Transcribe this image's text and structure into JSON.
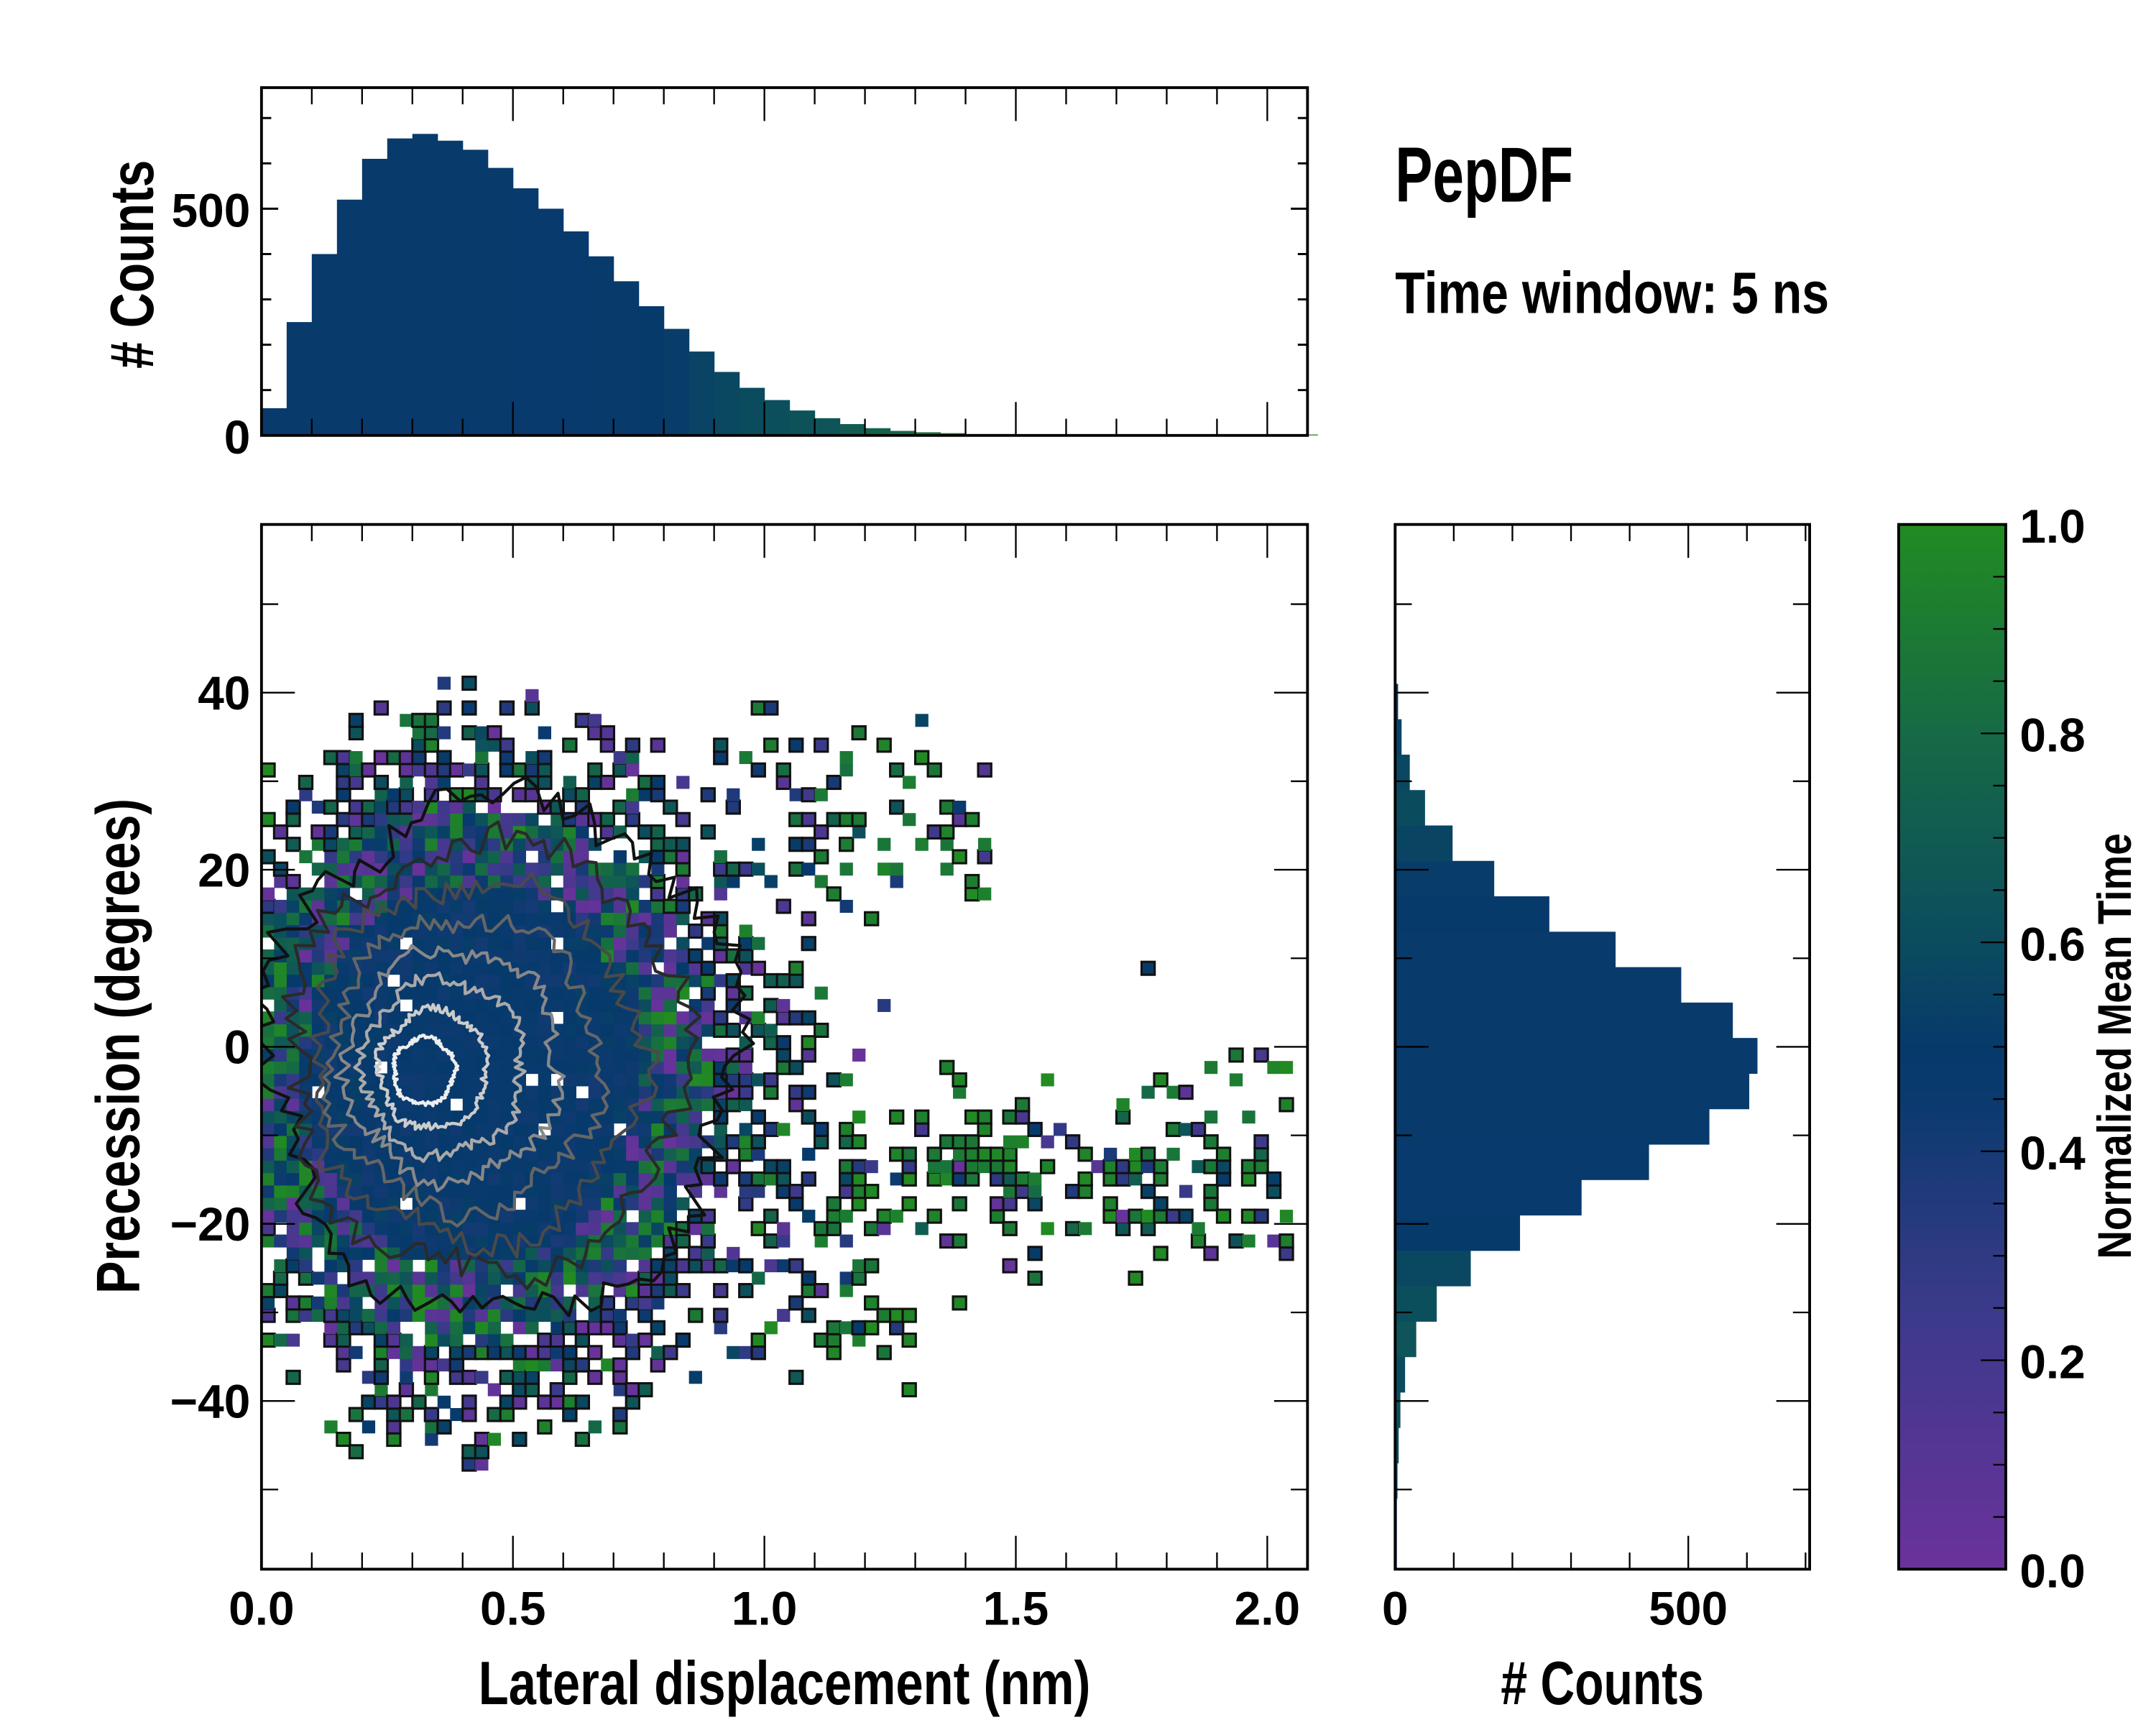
{
  "figure": {
    "title": "PepDF",
    "subtitle": "Time window: 5 ns"
  },
  "chart_data": [
    {
      "id": "top_histogram",
      "type": "bar",
      "title": "",
      "xlabel": "",
      "ylabel": "# Counts",
      "xlim": [
        0,
        2.08
      ],
      "ylim": [
        0,
        767
      ],
      "bin_width": 0.05,
      "bin_start": 0.0,
      "values": [
        60,
        250,
        400,
        520,
        610,
        655,
        665,
        650,
        630,
        590,
        545,
        500,
        450,
        395,
        340,
        285,
        235,
        185,
        140,
        105,
        78,
        55,
        38,
        25,
        16,
        10,
        7,
        5,
        3,
        3,
        2,
        2,
        1,
        2,
        1,
        2,
        1,
        1,
        2,
        1,
        1,
        2
      ],
      "color_values": [
        0.48,
        0.48,
        0.48,
        0.48,
        0.48,
        0.48,
        0.48,
        0.48,
        0.48,
        0.48,
        0.47,
        0.47,
        0.47,
        0.48,
        0.48,
        0.5,
        0.52,
        0.55,
        0.58,
        0.6,
        0.62,
        0.64,
        0.66,
        0.7,
        0.74,
        0.78,
        0.85,
        0.9,
        0.9,
        0.95,
        0.95,
        0.95,
        0.95,
        0.95,
        0.95,
        0.95,
        0.95,
        0.95,
        0.95,
        0.95,
        0.95,
        0.95
      ],
      "yticks": [
        0,
        500
      ],
      "grid": false
    },
    {
      "id": "main_heatmap",
      "type": "heatmap",
      "xlabel": "Lateral displacement (nm)",
      "ylabel": "Precession (degrees)",
      "xlim": [
        0,
        2.08
      ],
      "ylim": [
        -59,
        59
      ],
      "xticks": [
        "0.0",
        "0.5",
        "1.0",
        "1.5",
        "2.0"
      ],
      "yticks": [
        "−40",
        "−20",
        "0",
        "20",
        "40"
      ],
      "ytick_values": [
        -40,
        -20,
        0,
        20,
        40
      ],
      "cell_size": [
        0.025,
        1.4
      ],
      "density_model": {
        "center": [
          0.42,
          -3
        ],
        "spread": [
          0.42,
          27
        ],
        "streak_angle_center": -14,
        "seed": 7
      },
      "contour_levels": [
        1.0,
        0.84,
        0.7,
        0.57,
        0.45,
        0.34,
        0.23,
        0.13
      ],
      "contour_colors": [
        "#111111",
        "#2a2a2a",
        "#4a4a4a",
        "#666666",
        "#888888",
        "#a9a9a9",
        "#cccccc",
        "#eeeeee"
      ],
      "grid": false
    },
    {
      "id": "right_histogram",
      "type": "bar",
      "orientation": "horizontal",
      "xlabel": "# Counts",
      "ylabel": "",
      "xlim": [
        0,
        707
      ],
      "ylim": [
        -59,
        59
      ],
      "bin_width": 4,
      "bin_centers": [
        -57,
        -53,
        -49,
        -45,
        -41,
        -37,
        -33,
        -29,
        -25,
        -21,
        -17,
        -13,
        -9,
        -5,
        -1,
        3,
        7,
        11,
        15,
        19,
        23,
        27,
        31,
        35,
        39,
        43,
        47
      ],
      "values": [
        3,
        3,
        4,
        6,
        9,
        17,
        36,
        71,
        129,
        213,
        318,
        433,
        536,
        604,
        618,
        576,
        488,
        376,
        263,
        169,
        98,
        51,
        25,
        11,
        5,
        2,
        1
      ],
      "color_values": [
        0.35,
        0.4,
        0.55,
        0.6,
        0.62,
        0.6,
        0.65,
        0.62,
        0.58,
        0.5,
        0.47,
        0.47,
        0.48,
        0.48,
        0.48,
        0.48,
        0.48,
        0.48,
        0.5,
        0.52,
        0.56,
        0.6,
        0.58,
        0.55,
        0.5,
        0.5,
        0.5
      ],
      "xticks": [
        "0",
        "500"
      ],
      "xtick_values": [
        0,
        500
      ],
      "grid": false
    },
    {
      "id": "colorbar",
      "type": "colorbar",
      "label": "Normalized Mean Time",
      "range": [
        0,
        1
      ],
      "ticks": [
        "0.0",
        "0.2",
        "0.4",
        "0.6",
        "0.8",
        "1.0"
      ],
      "tick_values": [
        0,
        0.2,
        0.4,
        0.6,
        0.8,
        1.0
      ],
      "colors": [
        "#6a329b",
        "#3b3a8a",
        "#0a3a6e",
        "#063a6b",
        "#0e5458",
        "#166a45",
        "#228b22"
      ],
      "color_positions": [
        0,
        0.25,
        0.45,
        0.5,
        0.65,
        0.8,
        1.0
      ]
    }
  ]
}
